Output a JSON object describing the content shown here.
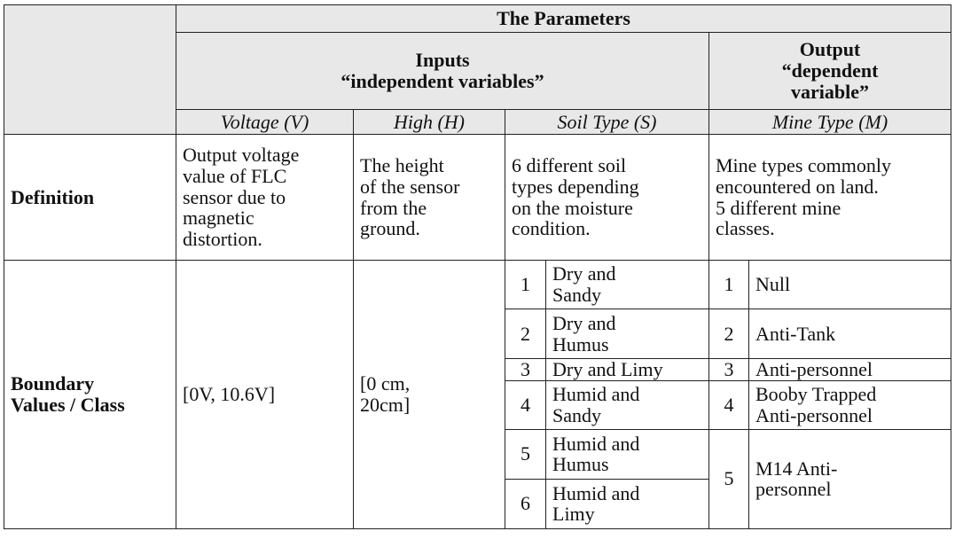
{
  "header": {
    "parameters_title": "The Parameters",
    "inputs_title": "Inputs",
    "inputs_subtitle": "“independent variables”",
    "output_title": "Output\n“dependent\nvariable”"
  },
  "columns": {
    "voltage": "Voltage (V)",
    "high": "High (H)",
    "soil": "Soil Type (S)",
    "mine": "Mine Type (M)"
  },
  "definition": {
    "label": "Definition",
    "voltage": "Output voltage\nvalue of FLC\nsensor due to\nmagnetic\ndistortion.",
    "high": "The height\nof the sensor\nfrom the\nground.",
    "soil": "6 different soil\ntypes depending\non the moisture\ncondition.",
    "mine": "Mine types commonly\nencountered on land.\n5 different mine\nclasses."
  },
  "boundary": {
    "label": "Boundary\nValues / Class",
    "voltage": "[0V, 10.6V]",
    "high": "[0 cm,\n20cm]"
  },
  "soil_types": [
    {
      "num": "1",
      "name": "Dry and\nSandy"
    },
    {
      "num": "2",
      "name": "Dry and\nHumus"
    },
    {
      "num": "3",
      "name": "Dry and Limy"
    },
    {
      "num": "4",
      "name": "Humid and\nSandy"
    },
    {
      "num": "5",
      "name": "Humid and\nHumus"
    },
    {
      "num": "6",
      "name": "Humid and\nLimy"
    }
  ],
  "mine_types": [
    {
      "num": "1",
      "name": "Null"
    },
    {
      "num": "2",
      "name": "Anti-Tank"
    },
    {
      "num": "3",
      "name": "Anti-personnel"
    },
    {
      "num": "4",
      "name": "Booby Trapped\nAnti-personnel"
    },
    {
      "num": "5",
      "name": "M14 Anti-\npersonnel"
    }
  ]
}
